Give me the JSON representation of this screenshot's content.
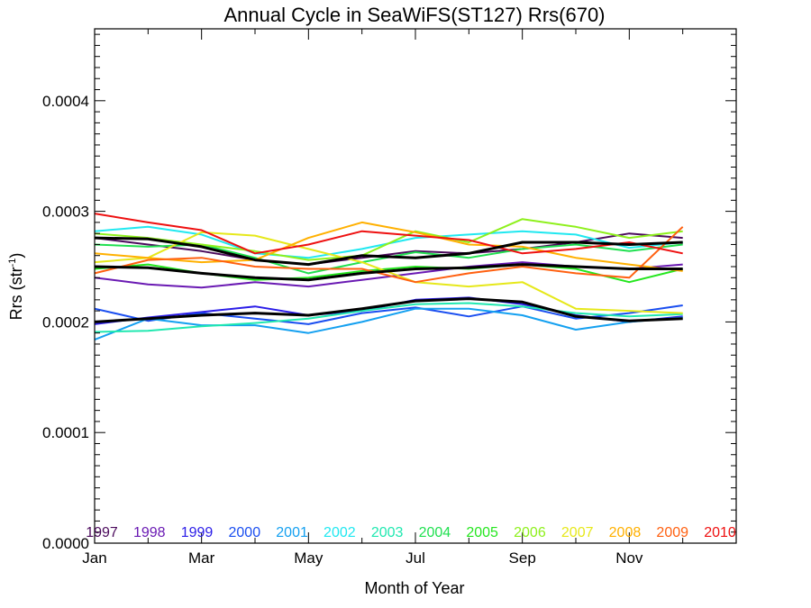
{
  "chart_data": {
    "type": "line",
    "title": "Annual Cycle in SeaWiFS(ST127) Rrs(670)",
    "xlabel": "Month of Year",
    "ylabel_main": "Rrs (str",
    "ylabel_sup": "-1",
    "ylabel_end": ")",
    "xlim": [
      1,
      13
    ],
    "ylim": [
      0.0,
      0.000465
    ],
    "x_ticks": [
      {
        "x": 1,
        "label": "Jan"
      },
      {
        "x": 3,
        "label": "Mar"
      },
      {
        "x": 5,
        "label": "May"
      },
      {
        "x": 7,
        "label": "Jul"
      },
      {
        "x": 9,
        "label": "Sep"
      },
      {
        "x": 11,
        "label": "Nov"
      }
    ],
    "y_ticks": [
      {
        "y": 0.0,
        "label": "0.0000"
      },
      {
        "y": 0.0001,
        "label": "0.0001"
      },
      {
        "y": 0.0002,
        "label": "0.0002"
      },
      {
        "y": 0.0003,
        "label": "0.0003"
      },
      {
        "y": 0.0004,
        "label": "0.0004"
      }
    ],
    "x": [
      1,
      2,
      3,
      4,
      5,
      6,
      7,
      8,
      9,
      10,
      11,
      12
    ],
    "legend_placement": "bottom",
    "series": [
      {
        "name": "1997",
        "color": "#4b0a5c",
        "values": [
          0.000276,
          0.00027,
          0.000264,
          0.000256,
          0.000252,
          0.000258,
          0.000264,
          0.000262,
          0.000266,
          0.000272,
          0.00028,
          0.000276
        ]
      },
      {
        "name": "1998",
        "color": "#6a1ab3",
        "values": [
          0.00024,
          0.000234,
          0.000231,
          0.000236,
          0.000232,
          0.000238,
          0.000244,
          0.00025,
          0.000254,
          0.00025,
          0.000248,
          0.000252
        ]
      },
      {
        "name": "1999",
        "color": "#2b1de8",
        "values": [
          0.000198,
          0.000204,
          0.000209,
          0.000214,
          0.000206,
          0.00021,
          0.00022,
          0.000222,
          0.000216,
          0.000206,
          0.0002,
          0.000205
        ]
      },
      {
        "name": "2000",
        "color": "#1a4ef0",
        "values": [
          0.000212,
          0.000201,
          0.000208,
          0.000203,
          0.000198,
          0.000208,
          0.000213,
          0.000205,
          0.000214,
          0.000203,
          0.000208,
          0.000215
        ]
      },
      {
        "name": "2001",
        "color": "#14a0f0",
        "values": [
          0.000184,
          0.000203,
          0.000197,
          0.000197,
          0.00019,
          0.0002,
          0.000212,
          0.000212,
          0.000206,
          0.000193,
          0.0002,
          0.000204
        ]
      },
      {
        "name": "2002",
        "color": "#20e8f0",
        "values": [
          0.000282,
          0.000286,
          0.000279,
          0.000262,
          0.000258,
          0.000266,
          0.000276,
          0.000279,
          0.000282,
          0.000279,
          0.000267,
          0.000272
        ]
      },
      {
        "name": "2003",
        "color": "#20e8b0",
        "values": [
          0.000191,
          0.000192,
          0.000196,
          0.000199,
          0.000203,
          0.00021,
          0.000216,
          0.000217,
          0.000214,
          0.000208,
          0.000205,
          0.000207
        ]
      },
      {
        "name": "2004",
        "color": "#20e050",
        "values": [
          0.00027,
          0.000268,
          0.00027,
          0.000258,
          0.000244,
          0.000254,
          0.000263,
          0.000258,
          0.000266,
          0.00027,
          0.000264,
          0.00027
        ]
      },
      {
        "name": "2005",
        "color": "#24e61e",
        "values": [
          0.000248,
          0.000252,
          0.000244,
          0.000238,
          0.00024,
          0.000246,
          0.00025,
          0.000248,
          0.000252,
          0.000248,
          0.000236,
          0.000248
        ]
      },
      {
        "name": "2006",
        "color": "#8ef01c",
        "values": [
          0.00028,
          0.000276,
          0.00027,
          0.000264,
          0.000256,
          0.00026,
          0.000282,
          0.000272,
          0.000293,
          0.000286,
          0.000276,
          0.000282
        ]
      },
      {
        "name": "2007",
        "color": "#e6e81a",
        "values": [
          0.000254,
          0.000258,
          0.000281,
          0.000278,
          0.000266,
          0.000254,
          0.000236,
          0.000232,
          0.000236,
          0.000212,
          0.00021,
          0.000208
        ]
      },
      {
        "name": "2008",
        "color": "#ffb000",
        "values": [
          0.000262,
          0.000258,
          0.000254,
          0.000256,
          0.000276,
          0.00029,
          0.000281,
          0.00027,
          0.000268,
          0.000258,
          0.000252,
          0.000246
        ]
      },
      {
        "name": "2009",
        "color": "#ff6010",
        "values": [
          0.000244,
          0.000256,
          0.000258,
          0.00025,
          0.000248,
          0.000248,
          0.000236,
          0.000244,
          0.00025,
          0.000244,
          0.00024,
          0.000286
        ]
      },
      {
        "name": "2010",
        "color": "#ee1010",
        "values": [
          0.000298,
          0.00029,
          0.000283,
          0.000262,
          0.00027,
          0.000282,
          0.000278,
          0.000274,
          0.000262,
          0.000266,
          0.000272,
          0.000262
        ]
      }
    ],
    "mean_lines": [
      {
        "color": "#000000",
        "values": [
          0.000276,
          0.000275,
          0.000268,
          0.000256,
          0.000252,
          0.00026,
          0.000258,
          0.000262,
          0.000272,
          0.000272,
          0.00027,
          0.000272
        ]
      },
      {
        "color": "#000000",
        "values": [
          0.00025,
          0.000249,
          0.000244,
          0.00024,
          0.000238,
          0.000244,
          0.000248,
          0.000249,
          0.000252,
          0.00025,
          0.000248,
          0.000248
        ]
      },
      {
        "color": "#000000",
        "values": [
          0.0002,
          0.000203,
          0.000206,
          0.000208,
          0.000206,
          0.000212,
          0.000219,
          0.000221,
          0.000218,
          0.000205,
          0.000201,
          0.000203
        ]
      }
    ]
  }
}
